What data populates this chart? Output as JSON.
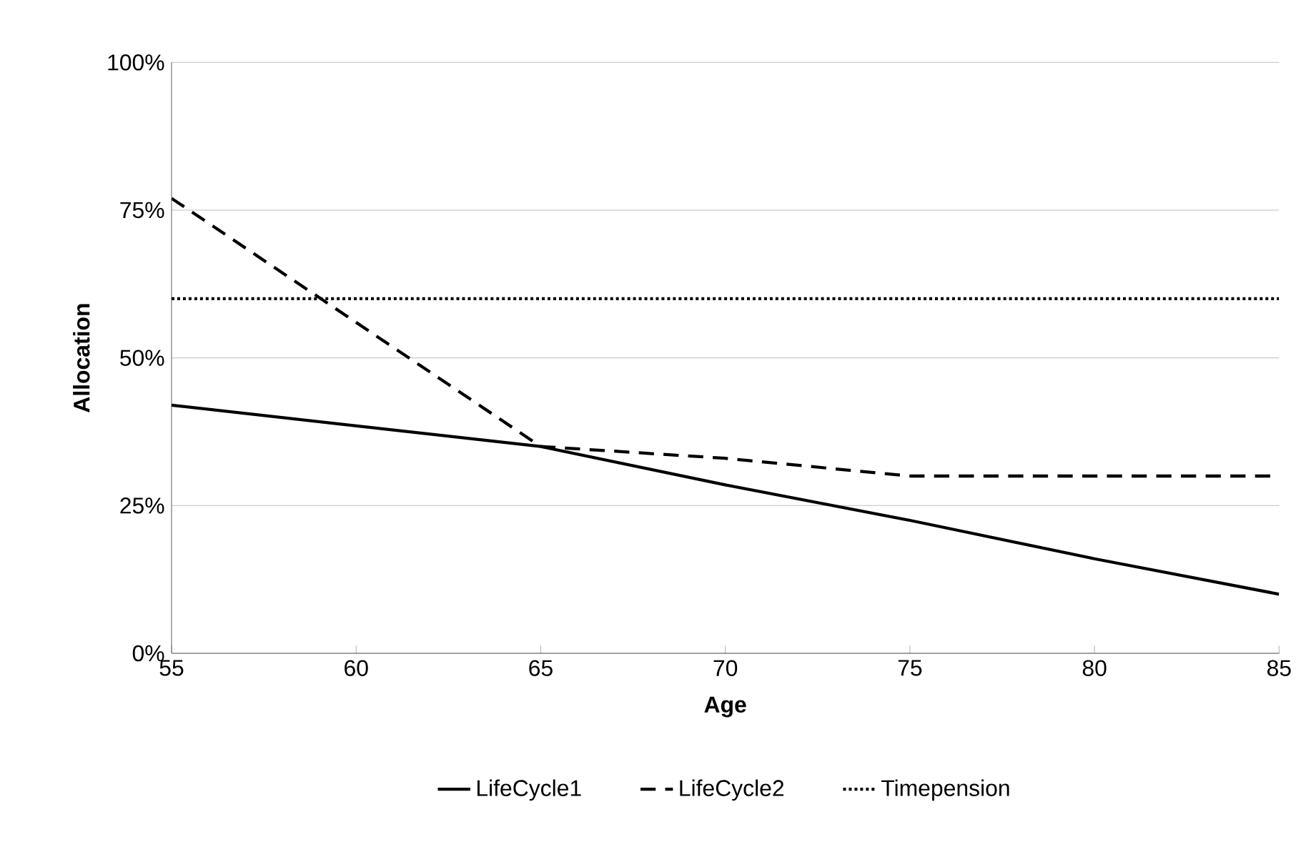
{
  "chart_data": {
    "type": "line",
    "xlabel": "Age",
    "ylabel": "Allocation",
    "xlim": [
      55,
      85
    ],
    "xticks": [
      55,
      60,
      65,
      70,
      75,
      80,
      85
    ],
    "ylim": [
      0,
      100
    ],
    "yticks": [
      {
        "value": 0,
        "label": "0%"
      },
      {
        "value": 25,
        "label": "25%"
      },
      {
        "value": 50,
        "label": "50%"
      },
      {
        "value": 75,
        "label": "75%"
      },
      {
        "value": 100,
        "label": "100%"
      }
    ],
    "grid": "y",
    "legend": "bottom",
    "marker": "none",
    "series": [
      {
        "name": "LifeCycle1",
        "color": "#000000",
        "line_style": "solid",
        "x": [
          55,
          65,
          70,
          75,
          80,
          85
        ],
        "values": [
          42,
          35,
          28.5,
          22.5,
          16,
          10
        ]
      },
      {
        "name": "LifeCycle2",
        "color": "#000000",
        "line_style": "dashed",
        "x": [
          55,
          65,
          70,
          75,
          85
        ],
        "values": [
          77,
          35,
          33,
          30,
          30
        ]
      },
      {
        "name": "Timepension",
        "color": "#000000",
        "line_style": "dotted",
        "x": [
          55,
          85
        ],
        "values": [
          60,
          60
        ]
      }
    ]
  }
}
